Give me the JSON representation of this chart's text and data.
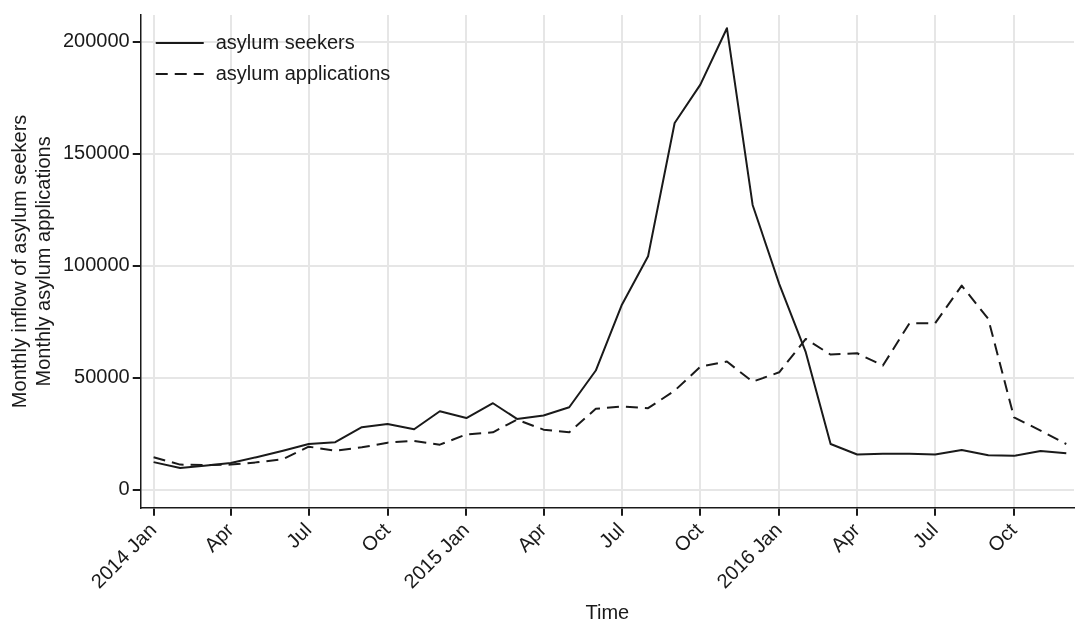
{
  "chart_data": {
    "type": "line",
    "xlabel": "Time",
    "ylabel": "Monthly inflow of asylum seekers\nMonthly asylum applications",
    "x": [
      "2014-01",
      "2014-02",
      "2014-03",
      "2014-04",
      "2014-05",
      "2014-06",
      "2014-07",
      "2014-08",
      "2014-09",
      "2014-10",
      "2014-11",
      "2014-12",
      "2015-01",
      "2015-02",
      "2015-03",
      "2015-04",
      "2015-05",
      "2015-06",
      "2015-07",
      "2015-08",
      "2015-09",
      "2015-10",
      "2015-11",
      "2015-12",
      "2016-01",
      "2016-02",
      "2016-03",
      "2016-04",
      "2016-05",
      "2016-06",
      "2016-07",
      "2016-08",
      "2016-09",
      "2016-10",
      "2016-11",
      "2016-12"
    ],
    "series": [
      {
        "name": "asylum seekers",
        "color": "#1a1a1a",
        "line_style": "solid",
        "values": [
          12400,
          9800,
          10800,
          12000,
          14600,
          17500,
          20500,
          21300,
          28000,
          29400,
          27100,
          35100,
          32100,
          38700,
          31700,
          33200,
          36900,
          53300,
          82300,
          104300,
          163800,
          180900,
          206100,
          127200,
          92000,
          61500,
          20500,
          15800,
          16100,
          16100,
          15800,
          17800,
          15500,
          15200,
          17400,
          16400
        ]
      },
      {
        "name": "asylum applications",
        "color": "#1a1a1a",
        "line_style": "dashed",
        "values": [
          14600,
          11300,
          11100,
          11300,
          12300,
          13700,
          19300,
          17500,
          19000,
          21100,
          21900,
          20200,
          24800,
          25700,
          31400,
          26900,
          25700,
          36200,
          37200,
          36500,
          44300,
          55000,
          57300,
          48300,
          52500,
          67400,
          60400,
          61000,
          55500,
          74400,
          74400,
          91200,
          76300,
          32400,
          26500,
          20500
        ]
      }
    ],
    "xlim": [
      "2013-12-17",
      "2016-12-10"
    ],
    "xticks": [
      {
        "value": "2014-01",
        "label": "2014 Jan"
      },
      {
        "value": "2014-04",
        "label": "Apr"
      },
      {
        "value": "2014-07",
        "label": "Jul"
      },
      {
        "value": "2014-10",
        "label": "Oct"
      },
      {
        "value": "2015-01",
        "label": "2015 Jan"
      },
      {
        "value": "2015-04",
        "label": "Apr"
      },
      {
        "value": "2015-07",
        "label": "Jul"
      },
      {
        "value": "2015-10",
        "label": "Oct"
      },
      {
        "value": "2016-01",
        "label": "2016 Jan"
      },
      {
        "value": "2016-04",
        "label": "Apr"
      },
      {
        "value": "2016-07",
        "label": "Jul"
      },
      {
        "value": "2016-10",
        "label": "Oct"
      }
    ],
    "ylim": [
      -8000,
      212000
    ],
    "yticks": [
      0,
      50000,
      100000,
      150000,
      200000
    ],
    "grid": true,
    "legend": "top left",
    "marker": "none"
  }
}
